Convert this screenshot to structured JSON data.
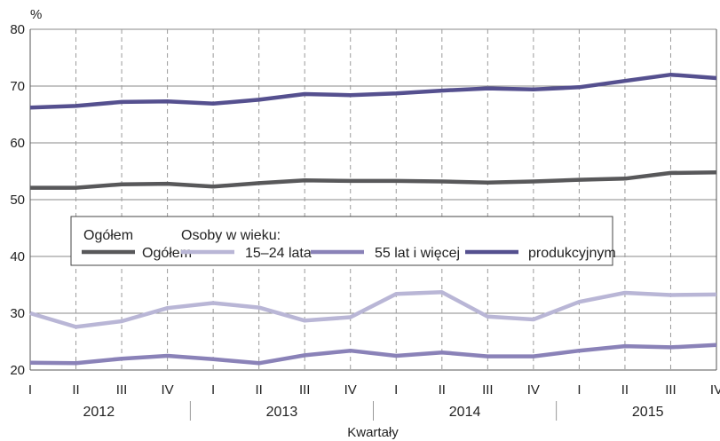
{
  "chart_data": {
    "type": "line",
    "ylabel": "%",
    "xlabel": "Kwartały",
    "ylim": [
      20,
      80
    ],
    "yticks": [
      20,
      30,
      40,
      50,
      60,
      70,
      80
    ],
    "categories": [
      "I",
      "II",
      "III",
      "IV",
      "I",
      "II",
      "III",
      "IV",
      "I",
      "II",
      "III",
      "IV",
      "I",
      "II",
      "III",
      "IV"
    ],
    "years": [
      "2012",
      "2013",
      "2014",
      "2015"
    ],
    "grid": true,
    "legend": {
      "group1_title": "Ogółem",
      "group2_title": "Osoby w wieku:",
      "placement": "middle-left"
    },
    "series": [
      {
        "key": "ogolem",
        "name": "Ogółem",
        "color": "#58585a",
        "values": [
          52.1,
          52.1,
          52.7,
          52.8,
          52.3,
          52.9,
          53.4,
          53.3,
          53.3,
          53.2,
          53.0,
          53.2,
          53.5,
          53.7,
          54.7,
          54.8
        ]
      },
      {
        "key": "mlodzi",
        "name": "15–24 lata",
        "color": "#b9b6d6",
        "values": [
          30.0,
          27.6,
          28.6,
          30.9,
          31.8,
          31.0,
          28.7,
          29.3,
          33.4,
          33.7,
          29.4,
          28.9,
          32.0,
          33.6,
          33.2,
          33.3
        ]
      },
      {
        "key": "starsi",
        "name": "55 lat i więcej",
        "color": "#8a82b8",
        "values": [
          21.3,
          21.2,
          22.0,
          22.5,
          21.9,
          21.2,
          22.6,
          23.4,
          22.5,
          23.1,
          22.4,
          22.4,
          23.4,
          24.2,
          24.0,
          24.4
        ]
      },
      {
        "key": "produkcyjny",
        "name": "produkcyjnym",
        "color": "#55508f",
        "values": [
          66.2,
          66.5,
          67.2,
          67.3,
          66.9,
          67.6,
          68.6,
          68.4,
          68.7,
          69.2,
          69.6,
          69.4,
          69.8,
          70.9,
          72.0,
          71.4
        ]
      }
    ]
  }
}
